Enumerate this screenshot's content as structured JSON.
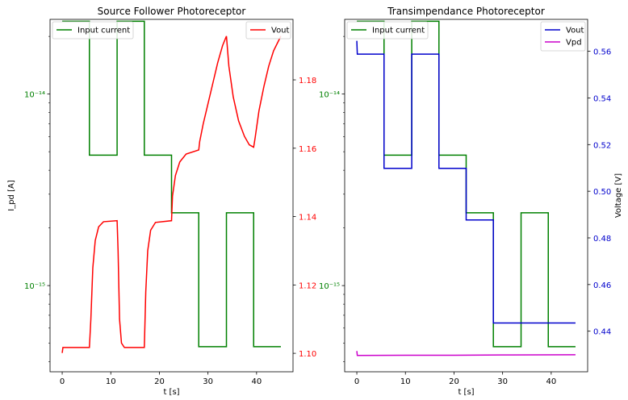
{
  "chart_data": [
    {
      "type": "line",
      "title": "Source Follower Photoreceptor",
      "xlabel": "t [s]",
      "ylabel": "I_pd [A]",
      "xlim": [
        -2.5,
        47.5
      ],
      "x_ticks": [
        0,
        10,
        20,
        30,
        40
      ],
      "left_axis": {
        "scale": "log",
        "ylim_log10": [
          -15.45,
          -13.61
        ],
        "color": "#008000",
        "ticks": [
          {
            "label": "10⁻¹⁴",
            "value": 1e-14
          },
          {
            "label": "10⁻¹⁵",
            "value": 1e-15
          }
        ]
      },
      "right_axis": {
        "scale": "linear",
        "ylim": [
          1.0946,
          1.1977
        ],
        "color": "#ff0000",
        "ticks": [
          "1.10",
          "1.12",
          "1.14",
          "1.16",
          "1.18"
        ]
      },
      "series": [
        {
          "name": "Input current",
          "axis": "left",
          "color": "#008000",
          "points": [
            [
              0,
              2.4e-14
            ],
            [
              5.6,
              2.4e-14
            ],
            [
              5.6,
              4.8e-15
            ],
            [
              11.3,
              4.8e-15
            ],
            [
              11.3,
              2.4e-14
            ],
            [
              16.9,
              2.4e-14
            ],
            [
              16.9,
              4.8e-15
            ],
            [
              22.5,
              4.8e-15
            ],
            [
              22.5,
              2.4e-15
            ],
            [
              28.1,
              2.4e-15
            ],
            [
              28.1,
              4.8e-16
            ],
            [
              33.8,
              4.8e-16
            ],
            [
              33.8,
              2.4e-15
            ],
            [
              39.4,
              2.4e-15
            ],
            [
              39.4,
              4.8e-16
            ],
            [
              45,
              4.8e-16
            ]
          ]
        },
        {
          "name": "Vout",
          "axis": "right",
          "color": "#ff0000",
          "points": [
            [
              0,
              1.1001
            ],
            [
              0.15,
              1.1017
            ],
            [
              5.6,
              1.1017
            ],
            [
              5.9,
              1.11
            ],
            [
              6.3,
              1.125
            ],
            [
              6.8,
              1.133
            ],
            [
              7.5,
              1.137
            ],
            [
              8.5,
              1.1385
            ],
            [
              11.3,
              1.1388
            ],
            [
              11.5,
              1.13
            ],
            [
              11.8,
              1.11
            ],
            [
              12.2,
              1.103
            ],
            [
              12.8,
              1.1017
            ],
            [
              16.9,
              1.1017
            ],
            [
              17.2,
              1.118
            ],
            [
              17.6,
              1.13
            ],
            [
              18.2,
              1.136
            ],
            [
              19.2,
              1.1383
            ],
            [
              22.5,
              1.1388
            ],
            [
              22.7,
              1.146
            ],
            [
              23.3,
              1.152
            ],
            [
              24.2,
              1.156
            ],
            [
              25.5,
              1.1583
            ],
            [
              28.1,
              1.1595
            ],
            [
              28.3,
              1.162
            ],
            [
              29,
              1.167
            ],
            [
              30,
              1.173
            ],
            [
              31,
              1.179
            ],
            [
              32,
              1.185
            ],
            [
              33,
              1.19
            ],
            [
              33.8,
              1.1928
            ],
            [
              34.3,
              1.184
            ],
            [
              35.2,
              1.175
            ],
            [
              36.3,
              1.168
            ],
            [
              37.5,
              1.1635
            ],
            [
              38.5,
              1.161
            ],
            [
              39.4,
              1.1603
            ],
            [
              39.7,
              1.163
            ],
            [
              40.5,
              1.171
            ],
            [
              41.5,
              1.178
            ],
            [
              42.5,
              1.184
            ],
            [
              43.5,
              1.1885
            ],
            [
              45,
              1.1928
            ]
          ]
        }
      ],
      "legends": [
        {
          "position": "upper-left",
          "entries": [
            "Input current"
          ]
        },
        {
          "position": "upper-right",
          "entries": [
            "Vout"
          ]
        }
      ],
      "grid": false
    },
    {
      "type": "line",
      "title": "Transimpendance Photoreceptor",
      "xlabel": "t [s]",
      "ylabel": "Voltage [V]",
      "xlim": [
        -2.5,
        47.5
      ],
      "x_ticks": [
        0,
        10,
        20,
        30,
        40
      ],
      "left_axis": {
        "scale": "log",
        "ylim_log10": [
          -15.45,
          -13.61
        ],
        "color": "#008000",
        "ticks": [
          {
            "label": "10⁻¹⁴",
            "value": 1e-14
          },
          {
            "label": "10⁻¹⁵",
            "value": 1e-15
          }
        ]
      },
      "right_axis": {
        "scale": "linear",
        "ylim": [
          0.4226,
          0.5737
        ],
        "color": "#0000cc",
        "ticks": [
          "0.44",
          "0.46",
          "0.48",
          "0.50",
          "0.52",
          "0.54",
          "0.56"
        ]
      },
      "series": [
        {
          "name": "Input current",
          "axis": "left",
          "color": "#008000",
          "points": [
            [
              0,
              2.4e-14
            ],
            [
              5.6,
              2.4e-14
            ],
            [
              5.6,
              4.8e-15
            ],
            [
              11.3,
              4.8e-15
            ],
            [
              11.3,
              2.4e-14
            ],
            [
              16.9,
              2.4e-14
            ],
            [
              16.9,
              4.8e-15
            ],
            [
              22.5,
              4.8e-15
            ],
            [
              22.5,
              2.4e-15
            ],
            [
              28.1,
              2.4e-15
            ],
            [
              28.1,
              4.8e-16
            ],
            [
              33.8,
              4.8e-16
            ],
            [
              33.8,
              2.4e-15
            ],
            [
              39.4,
              2.4e-15
            ],
            [
              39.4,
              4.8e-16
            ],
            [
              45,
              4.8e-16
            ]
          ]
        },
        {
          "name": "Vout",
          "axis": "right",
          "color": "#0000cc",
          "points": [
            [
              0,
              0.5645
            ],
            [
              0.1,
              0.5588
            ],
            [
              5.6,
              0.5588
            ],
            [
              5.6,
              0.5098
            ],
            [
              11.3,
              0.5098
            ],
            [
              11.3,
              0.5588
            ],
            [
              16.9,
              0.5588
            ],
            [
              16.9,
              0.5098
            ],
            [
              22.5,
              0.5098
            ],
            [
              22.5,
              0.4877
            ],
            [
              28.1,
              0.4877
            ],
            [
              28.1,
              0.4435
            ],
            [
              45,
              0.4435
            ]
          ]
        },
        {
          "name": "Vpd",
          "axis": "right",
          "color": "#cc00cc",
          "points": [
            [
              0,
              0.4315
            ],
            [
              0.1,
              0.4296
            ],
            [
              10,
              0.4297
            ],
            [
              20,
              0.4297
            ],
            [
              30,
              0.4298
            ],
            [
              45,
              0.4299
            ]
          ]
        }
      ],
      "legends": [
        {
          "position": "upper-left",
          "entries": [
            "Input current"
          ]
        },
        {
          "position": "upper-right",
          "entries": [
            "Vout",
            "Vpd"
          ]
        }
      ],
      "grid": false
    }
  ]
}
